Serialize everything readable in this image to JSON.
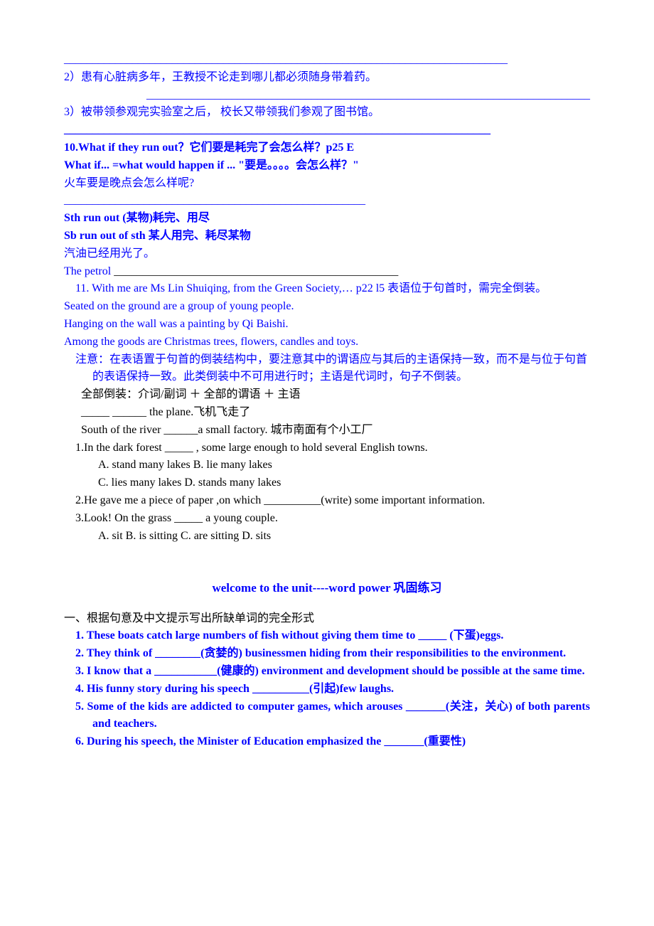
{
  "top": {
    "underline_full": "______________________________________________________________________________",
    "q2": "2）患有心脏病多年，王教授不论走到哪儿都必须随身带着药。",
    "underline_q2": "______________________________________________________________________________",
    "q3": "3）被带领参观完实验室之后， 校长又带领我们参观了图书馆。",
    "underline_q3": "___________________________________________________________________________"
  },
  "item10": {
    "l1": "10.What if they run out？它们要是耗完了会怎么样？p25 E",
    "l2": "What if... =what would happen if ...  \"要是。。。。会怎么样？\"",
    "l3": "火车要是晚点会怎么样呢?",
    "underline": "_____________________________________________________",
    "l4": "Sth run out   (某物)耗完、用尽",
    "l5": "Sb run out of sth   某人用完、耗尽某物",
    "l6": "汽油已经用光了。",
    "l7a": "The petrol ",
    "l7b": "__________________________________________________"
  },
  "item11": {
    "l1": "11. With me are Ms Lin Shuiqing, from the Green Society,… p22   l5 表语位于句首时，需完全倒装。",
    "s1": "Seated on the ground are a group of young people.",
    "s2": "Hanging on the wall was a painting by Qi Baishi.",
    "s3": "Among the goods are Christmas trees, flowers, candles and toys.",
    "note": "注意：在表语置于句首的倒装结构中，要注意其中的谓语应与其后的主语保持一致，而不是与位于句首的表语保持一致。此类倒装中不可用进行时；主语是代词时，句子不倒装。"
  },
  "black_block": {
    "l1": "全部倒装：介词/副词 ＋ 全部的谓语 ＋ 主语",
    "l2": "_____ ______ the plane.飞机飞走了",
    "l3": "South of the river ______a small factory.  城市南面有个小工厂",
    "q1": "1.In the dark forest _____ , some large enough to hold several English towns.",
    "q1a": "A. stand many lakes        B. lie many lakes",
    "q1b": "C. lies many lakes          D. stands many lakes",
    "q2": "2.He gave me a piece of paper ,on which __________(write) some important information.",
    "q3": "3.Look! On the grass _____ a young couple.",
    "q3a": "A. sit       B. is sitting      C. are sitting      D. sits"
  },
  "section2": {
    "title": "welcome to the unit----word power 巩固练习",
    "head": "一、根据句意及中文提示写出所缺单词的完全形式",
    "q1": "1.  These boats catch large numbers of fish without giving them time to _____ (下蛋)eggs.",
    "q2": "2.  They think of ________(贪婪的) businessmen hiding from their responsibilities to the environment.",
    "q3": "3.  I know that a ___________(健康的) environment and development should be possible at the same time.",
    "q4": "4.  His funny story during his speech __________(引起)few laughs.",
    "q5": "5.  Some of the kids are addicted to computer games, which arouses _______(关注，关心) of both parents and teachers.",
    "q6": "6.  During his speech, the Minister of Education emphasized the _______(重要性)"
  }
}
